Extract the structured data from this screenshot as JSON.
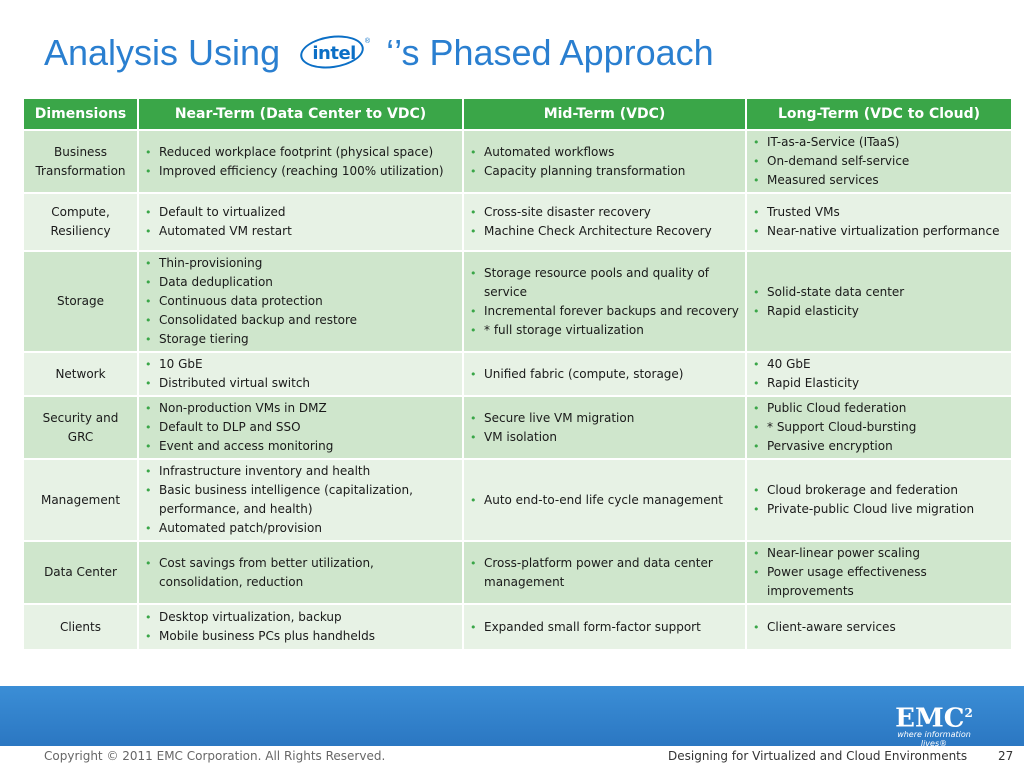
{
  "title": {
    "prefix": "Analysis Using",
    "logo_text": "intel",
    "suffix": "‘’s Phased Approach"
  },
  "table": {
    "headers": [
      "Dimensions",
      "Near-Term (Data Center to VDC)",
      "Mid-Term (VDC)",
      "Long-Term (VDC to Cloud)"
    ],
    "rows": [
      {
        "dimension": "Business Transformation",
        "near": [
          "Reduced workplace footprint (physical space)",
          "Improved efficiency (reaching 100% utilization)"
        ],
        "mid": [
          "Automated workflows",
          "Capacity planning transformation"
        ],
        "long": [
          "IT-as-a-Service (ITaaS)",
          " On-demand self-service",
          "Measured services"
        ]
      },
      {
        "dimension": "Compute, Resiliency",
        "near": [
          "Default to virtualized",
          "Automated VM restart"
        ],
        "mid": [
          "Cross-site disaster recovery",
          "Machine Check Architecture Recovery"
        ],
        "long": [
          "Trusted VMs",
          "Near-native virtualization performance"
        ]
      },
      {
        "dimension": "Storage",
        "near": [
          "Thin-provisioning",
          "Data deduplication",
          "Continuous data protection",
          "Consolidated backup and restore",
          "Storage tiering"
        ],
        "mid": [
          "Storage resource pools and quality of service",
          "Incremental forever backups and recovery",
          " * full storage virtualization"
        ],
        "long": [
          "Solid-state data center",
          "Rapid elasticity"
        ]
      },
      {
        "dimension": "Network",
        "near": [
          " 10 GbE",
          "Distributed virtual switch"
        ],
        "mid": [
          "Unified fabric  (compute, storage)"
        ],
        "long": [
          "40 GbE",
          "Rapid Elasticity"
        ]
      },
      {
        "dimension": "Security and GRC",
        "near": [
          "Non-production  VMs in DMZ",
          " Default to DLP and SSO",
          "Event and access monitoring"
        ],
        "mid": [
          "Secure live VM migration",
          "VM isolation"
        ],
        "long": [
          "Public Cloud federation",
          "* Support Cloud-bursting",
          "Pervasive encryption"
        ]
      },
      {
        "dimension": "Management",
        "near": [
          "Infrastructure inventory and health",
          "Basic business intelligence (capitalization, performance, and health)",
          "Automated patch/provision"
        ],
        "mid": [
          "Auto end-to-end life cycle management"
        ],
        "long": [
          "Cloud brokerage and federation",
          "Private-public Cloud live migration"
        ]
      },
      {
        "dimension": "Data Center",
        "near": [
          "Cost savings from better utilization, consolidation, reduction"
        ],
        "mid": [
          "Cross-platform power and data center management"
        ],
        "long": [
          "Near-linear power scaling",
          "Power usage effectiveness improvements"
        ]
      },
      {
        "dimension": "Clients",
        "near": [
          "Desktop virtualization, backup",
          "Mobile business PCs plus handhelds"
        ],
        "mid": [
          "Expanded small form-factor support"
        ],
        "long": [
          "Client-aware services"
        ]
      }
    ]
  },
  "footer": {
    "copyright": "Copyright © 2011 EMC Corporation. All Rights Reserved.",
    "course": "Designing for Virtualized and Cloud Environments",
    "page": "27",
    "logo_word": "EMC",
    "logo_sup": "2",
    "logo_tagline": "where information lives®",
    "band_color": "#2f80cc"
  },
  "colors": {
    "title": "#2a7fd0",
    "header_bg": "#3aa648",
    "row_dark": "#cfe6cc",
    "row_light": "#e7f2e5",
    "bullet": "#3aa648"
  },
  "icons": {
    "bullet": "•"
  }
}
